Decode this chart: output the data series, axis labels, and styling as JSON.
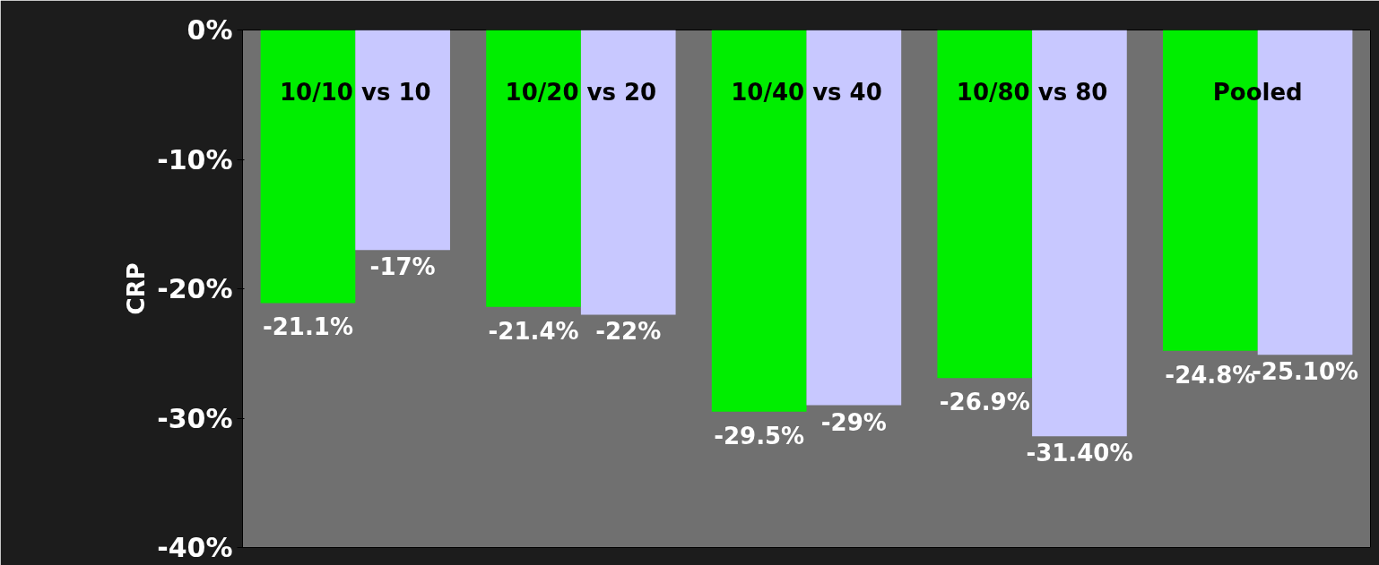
{
  "chart_data": {
    "type": "bar",
    "ylabel": "CRP",
    "categories": [
      "10/10 vs 10",
      "10/20 vs 20",
      "10/40 vs 40",
      "10/80 vs 80",
      "Pooled"
    ],
    "series": [
      {
        "color": "#00ee00",
        "values": [
          -21.1,
          -21.4,
          -29.5,
          -26.9,
          -24.8
        ],
        "value_labels": [
          "-21.1%",
          "-21.4%",
          "-29.5%",
          "-26.9%",
          "-24.8%"
        ]
      },
      {
        "color": "#c8c8ff",
        "values": [
          -17,
          -22,
          -29,
          -31.4,
          -25.1
        ],
        "value_labels": [
          "-17%",
          "-22%",
          "-29%",
          "-31.40%",
          "-25.10%"
        ]
      }
    ],
    "ylim": [
      -40,
      0
    ],
    "yticks": [
      {
        "value": 0,
        "label": "0%"
      },
      {
        "value": -10,
        "label": "-10%"
      },
      {
        "value": -20,
        "label": "-20%"
      },
      {
        "value": -30,
        "label": "-30%"
      },
      {
        "value": -40,
        "label": "-40%"
      }
    ],
    "grid": false
  }
}
